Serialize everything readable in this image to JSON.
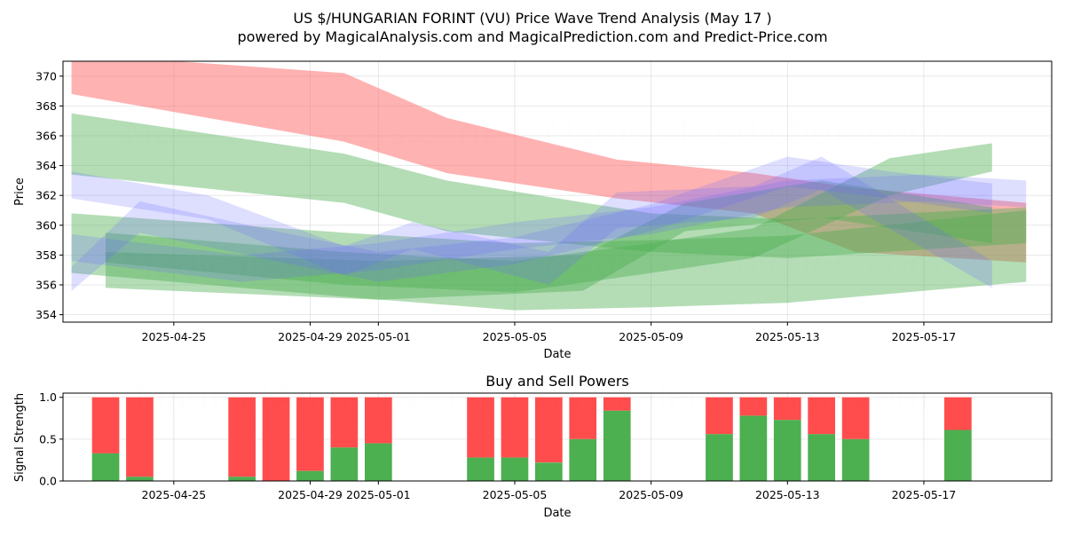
{
  "header": {
    "title": "US $/HUNGARIAN FORINT (VU) Price Wave Trend Analysis (May 17 )",
    "subtitle": "powered by MagicalAnalysis.com and MagicalPrediction.com and Predict-Price.com"
  },
  "watermarks": [
    "MagicalAnalysis.com",
    "MagicalPrediction.com"
  ],
  "colors": {
    "red": "#ff6666",
    "green": "#4caf50",
    "blue": "#6b6bff",
    "bar_buy": "#4caf50",
    "bar_sell": "#ff4d4d"
  },
  "chart_data": [
    {
      "type": "area",
      "title": "",
      "xlabel": "Date",
      "ylabel": "Price",
      "x_type": "date",
      "xlim": [
        "2025-04-21T18:00",
        "2025-05-20T18:00"
      ],
      "ylim": [
        353.5,
        371
      ],
      "x_ticks": [
        "2025-04-25",
        "2025-04-29",
        "2025-05-01",
        "2025-05-05",
        "2025-05-09",
        "2025-05-13",
        "2025-05-17"
      ],
      "y_ticks": [
        354,
        356,
        358,
        360,
        362,
        364,
        366,
        368,
        370
      ],
      "grid": true,
      "bands": [
        {
          "color": "red",
          "x": [
            "2025-04-22",
            "2025-04-30",
            "2025-05-03",
            "2025-05-08",
            "2025-05-12",
            "2025-05-15",
            "2025-05-20"
          ],
          "lower": [
            368.8,
            365.6,
            363.5,
            361.8,
            360.8,
            358.2,
            357.5
          ],
          "upper": [
            371.5,
            370.2,
            367.2,
            364.4,
            363.5,
            362.5,
            361.5
          ]
        },
        {
          "color": "green",
          "x": [
            "2025-04-22",
            "2025-04-30",
            "2025-05-03",
            "2025-05-09",
            "2025-05-13",
            "2025-05-20"
          ],
          "lower": [
            363.4,
            361.5,
            359.6,
            358.2,
            357.8,
            358.8
          ],
          "upper": [
            367.5,
            364.8,
            363.0,
            360.8,
            360.4,
            361.2
          ]
        },
        {
          "color": "green",
          "x": [
            "2025-04-22",
            "2025-04-30",
            "2025-05-05",
            "2025-05-09",
            "2025-05-13",
            "2025-05-20"
          ],
          "lower": [
            356.8,
            355.2,
            354.3,
            354.5,
            354.8,
            356.2
          ],
          "upper": [
            360.8,
            359.5,
            358.8,
            359.0,
            359.3,
            361.0
          ]
        },
        {
          "color": "green",
          "x": [
            "2025-04-23",
            "2025-04-30",
            "2025-05-05",
            "2025-05-09",
            "2025-05-12",
            "2025-05-16",
            "2025-05-19"
          ],
          "lower": [
            357.5,
            356.0,
            355.5,
            356.8,
            357.8,
            362.0,
            363.6
          ],
          "upper": [
            359.5,
            358.2,
            357.6,
            358.8,
            359.8,
            364.5,
            365.5
          ]
        },
        {
          "color": "green",
          "x": [
            "2025-04-23",
            "2025-05-01",
            "2025-05-07",
            "2025-05-10",
            "2025-05-14",
            "2025-05-19"
          ],
          "lower": [
            355.8,
            355.0,
            355.6,
            359.6,
            360.5,
            358.8
          ],
          "upper": [
            358.2,
            357.6,
            358.0,
            361.5,
            363.0,
            361.2
          ]
        },
        {
          "color": "blue",
          "x": [
            "2025-04-22",
            "2025-04-24",
            "2025-04-28",
            "2025-05-01",
            "2025-05-05",
            "2025-05-09",
            "2025-05-13",
            "2025-05-16",
            "2025-05-19"
          ],
          "lower": [
            355.6,
            359.5,
            357.6,
            356.2,
            357.4,
            359.6,
            362.6,
            361.8,
            360.8
          ],
          "upper": [
            357.2,
            361.6,
            359.6,
            358.2,
            359.2,
            361.4,
            364.6,
            363.6,
            362.8
          ]
        },
        {
          "color": "blue",
          "x": [
            "2025-04-22",
            "2025-04-26",
            "2025-04-30",
            "2025-05-02",
            "2025-05-06",
            "2025-05-08",
            "2025-05-12",
            "2025-05-14",
            "2025-05-19"
          ],
          "lower": [
            361.8,
            360.4,
            356.6,
            358.4,
            356.0,
            359.8,
            360.5,
            362.4,
            355.8
          ],
          "upper": [
            363.6,
            362.0,
            358.6,
            360.2,
            358.2,
            362.2,
            362.6,
            364.6,
            357.6
          ]
        },
        {
          "color": "blue",
          "x": [
            "2025-04-22",
            "2025-04-27",
            "2025-05-01",
            "2025-05-05",
            "2025-05-09",
            "2025-05-13",
            "2025-05-17",
            "2025-05-20"
          ],
          "lower": [
            357.6,
            356.2,
            357.0,
            358.4,
            359.4,
            361.2,
            361.6,
            361.2
          ],
          "upper": [
            359.4,
            358.0,
            358.8,
            360.2,
            361.2,
            363.0,
            363.4,
            363.0
          ]
        }
      ]
    },
    {
      "type": "bar",
      "title": "Buy and Sell Powers",
      "xlabel": "Date",
      "ylabel": "Signal Strength",
      "x_type": "date",
      "xlim": [
        "2025-04-21T18:00",
        "2025-05-20T18:00"
      ],
      "ylim": [
        0,
        1.05
      ],
      "x_ticks": [
        "2025-04-25",
        "2025-04-29",
        "2025-05-01",
        "2025-05-05",
        "2025-05-09",
        "2025-05-13",
        "2025-05-17"
      ],
      "y_ticks": [
        "0.0",
        "0.5",
        "1.0"
      ],
      "grid": true,
      "series": [
        {
          "name": "Buy",
          "color": "bar_buy"
        },
        {
          "name": "Sell",
          "color": "bar_sell"
        }
      ],
      "dates": [
        "2025-04-23",
        "2025-04-24",
        "2025-04-27",
        "2025-04-28",
        "2025-04-29",
        "2025-04-30",
        "2025-05-01",
        "2025-05-04",
        "2025-05-05",
        "2025-05-06",
        "2025-05-07",
        "2025-05-08",
        "2025-05-11",
        "2025-05-12",
        "2025-05-13",
        "2025-05-14",
        "2025-05-15",
        "2025-05-18"
      ],
      "buy": [
        0.33,
        0.05,
        0.05,
        0.0,
        0.12,
        0.4,
        0.45,
        0.28,
        0.28,
        0.22,
        0.5,
        0.84,
        0.56,
        0.78,
        0.73,
        0.56,
        0.5,
        0.61
      ]
    }
  ]
}
